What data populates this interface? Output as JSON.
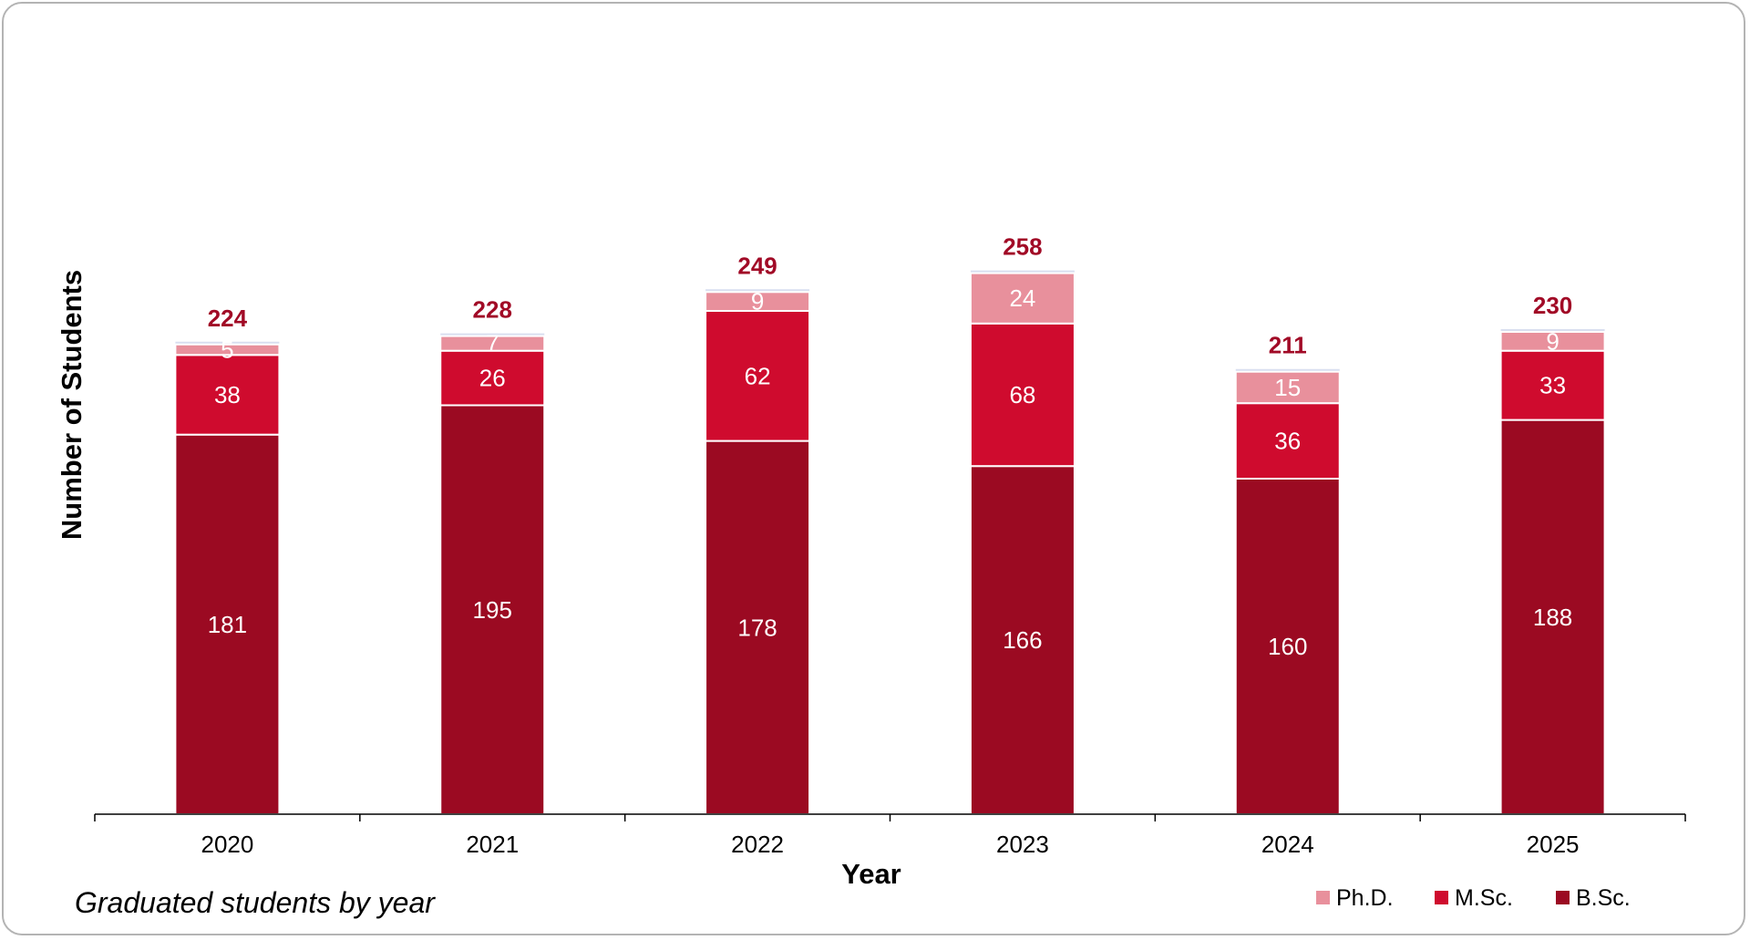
{
  "chart_data": {
    "type": "bar",
    "stacked": true,
    "title": "",
    "caption": "Graduated students by year",
    "xlabel": "Year",
    "ylabel": "Number of Students",
    "categories": [
      "2020",
      "2021",
      "2022",
      "2023",
      "2024",
      "2025"
    ],
    "series": [
      {
        "name": "B.Sc.",
        "color": "#9b0a22",
        "values": [
          181,
          195,
          178,
          166,
          160,
          188
        ]
      },
      {
        "name": "M.Sc.",
        "color": "#cf0b2e",
        "values": [
          38,
          26,
          62,
          68,
          36,
          33
        ]
      },
      {
        "name": "Ph.D.",
        "color": "#e8909c",
        "values": [
          5,
          7,
          9,
          24,
          15,
          9
        ]
      }
    ],
    "totals": [
      224,
      228,
      249,
      258,
      211,
      230
    ],
    "ylim": [
      0,
      260
    ],
    "grid": false,
    "legend_position": "bottom-right",
    "legend_order": [
      "Ph.D.",
      "M.Sc.",
      "B.Sc."
    ],
    "total_label_color": "#a10a26"
  }
}
